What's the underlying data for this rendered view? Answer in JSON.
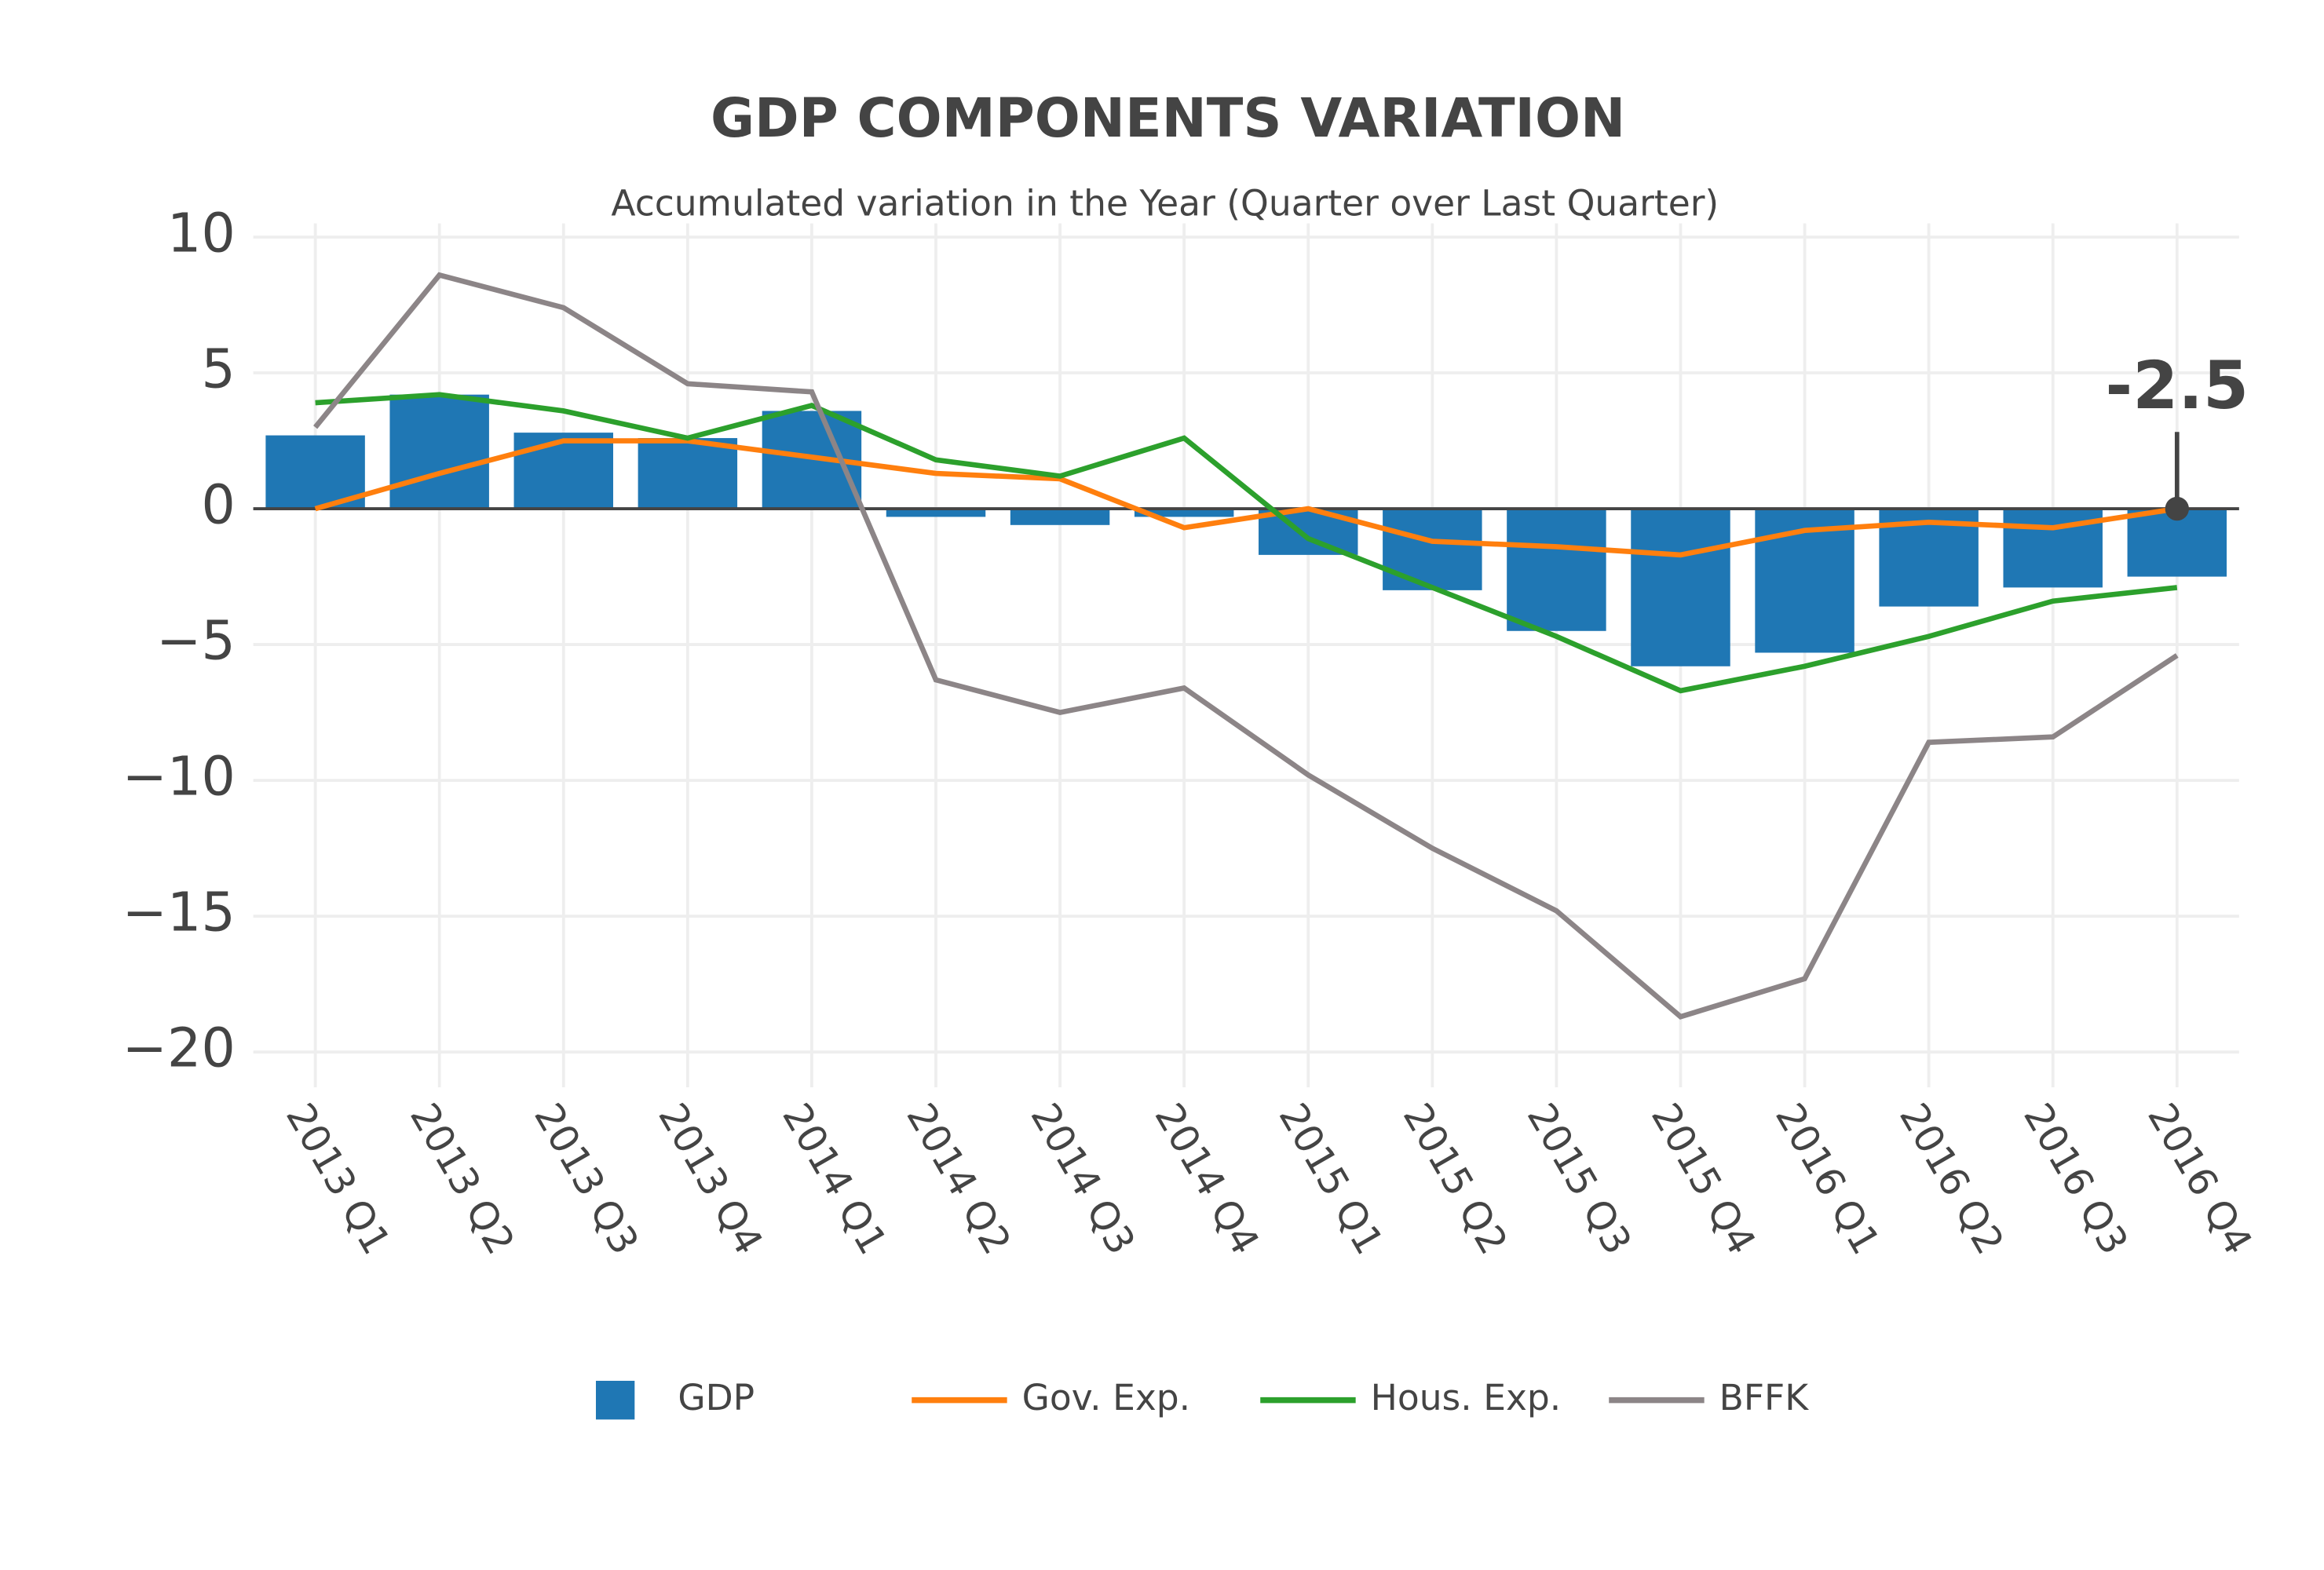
{
  "chart_data": {
    "type": "bar",
    "title": "GDP COMPONENTS VARIATION",
    "subtitle": "Accumulated variation in the Year (Quarter over Last Quarter)",
    "categories": [
      "2013 Q1",
      "2013 Q2",
      "2013 Q3",
      "2013 Q4",
      "2014 Q1",
      "2014 Q2",
      "2014 Q3",
      "2014 Q4",
      "2015 Q1",
      "2015 Q2",
      "2015 Q3",
      "2015 Q4",
      "2016 Q1",
      "2016 Q2",
      "2016 Q3",
      "2016 Q4"
    ],
    "series": [
      {
        "name": "GDP",
        "type": "bar",
        "color": "#1f77b4",
        "values": [
          2.7,
          4.2,
          2.8,
          2.6,
          3.6,
          -0.3,
          -0.6,
          -0.3,
          -1.7,
          -3.0,
          -4.5,
          -5.8,
          -5.3,
          -3.6,
          -2.9,
          -2.5
        ]
      },
      {
        "name": "Gov. Exp.",
        "type": "line",
        "color": "#ff7f0e",
        "values": [
          0.0,
          1.3,
          2.5,
          2.5,
          1.9,
          1.3,
          1.1,
          -0.7,
          0.0,
          -1.2,
          -1.4,
          -1.7,
          -0.8,
          -0.5,
          -0.7,
          0.0
        ]
      },
      {
        "name": "Hous. Exp.",
        "type": "line",
        "color": "#2ca02c",
        "values": [
          3.9,
          4.2,
          3.6,
          2.6,
          3.8,
          1.8,
          1.2,
          2.6,
          -1.1,
          -2.9,
          -4.7,
          -6.7,
          -5.8,
          -4.7,
          -3.4,
          -2.9
        ]
      },
      {
        "name": "BFFK",
        "type": "line",
        "color": "#8c8587",
        "values": [
          3.0,
          8.6,
          7.4,
          4.6,
          4.3,
          -6.3,
          -7.5,
          -6.6,
          -9.8,
          -12.5,
          -14.8,
          -18.7,
          -17.3,
          -8.6,
          -8.4,
          -5.4
        ]
      }
    ],
    "annotation": "-2.5",
    "ylim": [
      -21.3,
      10.5
    ],
    "yticks": [
      {
        "value": -20,
        "label": "−20"
      },
      {
        "value": -15,
        "label": "−15"
      },
      {
        "value": -10,
        "label": "−10"
      },
      {
        "value": -5,
        "label": "−5"
      },
      0,
      5,
      10
    ],
    "grid": true,
    "legend": "bottom"
  }
}
